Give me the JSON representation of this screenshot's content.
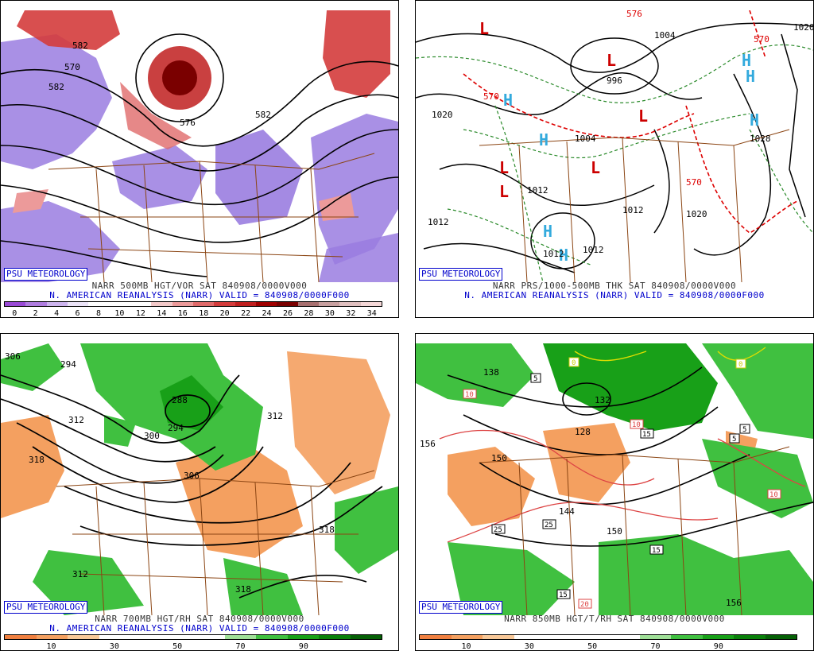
{
  "panels": [
    {
      "id": "p1",
      "badge": "PSU METEOROLOGY",
      "caption1": "NARR 500MB HGT/VOR SAT 840908/0000V000",
      "caption2": "N. AMERICAN REANALYSIS (NARR) VALID = 840908/0000F000",
      "colorbar": [
        "#9a4ad6",
        "#b07de0",
        "#cdb4ee",
        "#ece4f8",
        "#ffffff",
        "#ffffff",
        "#ffffff",
        "#f3c9c9",
        "#ec9a9a",
        "#e06a6a",
        "#d43c3c",
        "#c01f1f",
        "#a00000",
        "#7a0000",
        "#a87070",
        "#c8a0a0",
        "#e0c0c0",
        "#f5d8d8"
      ],
      "ticks": [
        "0",
        "2",
        "4",
        "6",
        "8",
        "10",
        "12",
        "14",
        "16",
        "18",
        "20",
        "22",
        "24",
        "26",
        "28",
        "30",
        "32",
        "34"
      ],
      "labels": [
        "582",
        "570",
        "582",
        "576",
        "582"
      ]
    },
    {
      "id": "p2",
      "badge": "PSU METEOROLOGY",
      "caption1": "NARR PRS/1000-500MB THK SAT 840908/0000V000",
      "caption2": "N. AMERICAN REANALYSIS (NARR) VALID = 840908/0000F000",
      "labels": [
        "1020",
        "1012",
        "1012",
        "1020",
        "1028",
        "1020",
        "1004",
        "1012",
        "1012",
        "1012",
        "996",
        "1004",
        "570",
        "576",
        "570",
        "570"
      ]
    },
    {
      "id": "p3",
      "badge": "PSU METEOROLOGY",
      "caption1": "NARR 700MB HGT/RH SAT 840908/0000V000",
      "caption2": "N. AMERICAN REANALYSIS (NARR) VALID = 840908/0000F000",
      "colorbar": [
        "#f08040",
        "#f4a060",
        "#f8c898",
        "#ffffff",
        "#ffffff",
        "#ffffff",
        "#ffffff",
        "#a0e098",
        "#40c040",
        "#18a018",
        "#0a800a",
        "#066006"
      ],
      "ticks": [
        "10",
        "30",
        "50",
        "70",
        "90"
      ],
      "labels": [
        "306",
        "294",
        "312",
        "318",
        "288",
        "300",
        "294",
        "312",
        "306",
        "318",
        "312",
        "318"
      ]
    },
    {
      "id": "p4",
      "badge": "PSU METEOROLOGY",
      "caption1": "NARR 850MB HGT/T/RH SAT 840908/0000V000",
      "caption2": "",
      "colorbar": [
        "#f08040",
        "#f4a060",
        "#f8c898",
        "#ffffff",
        "#ffffff",
        "#ffffff",
        "#ffffff",
        "#a0e098",
        "#40c040",
        "#18a018",
        "#0a800a",
        "#066006"
      ],
      "ticks": [
        "10",
        "30",
        "50",
        "70",
        "90"
      ],
      "labels": [
        "156",
        "138",
        "150",
        "132",
        "128",
        "144",
        "150",
        "156",
        "5",
        "10",
        "0",
        "10",
        "15",
        "15",
        "25",
        "25",
        "15",
        "5",
        "5",
        "10",
        "0",
        "20"
      ]
    }
  ]
}
